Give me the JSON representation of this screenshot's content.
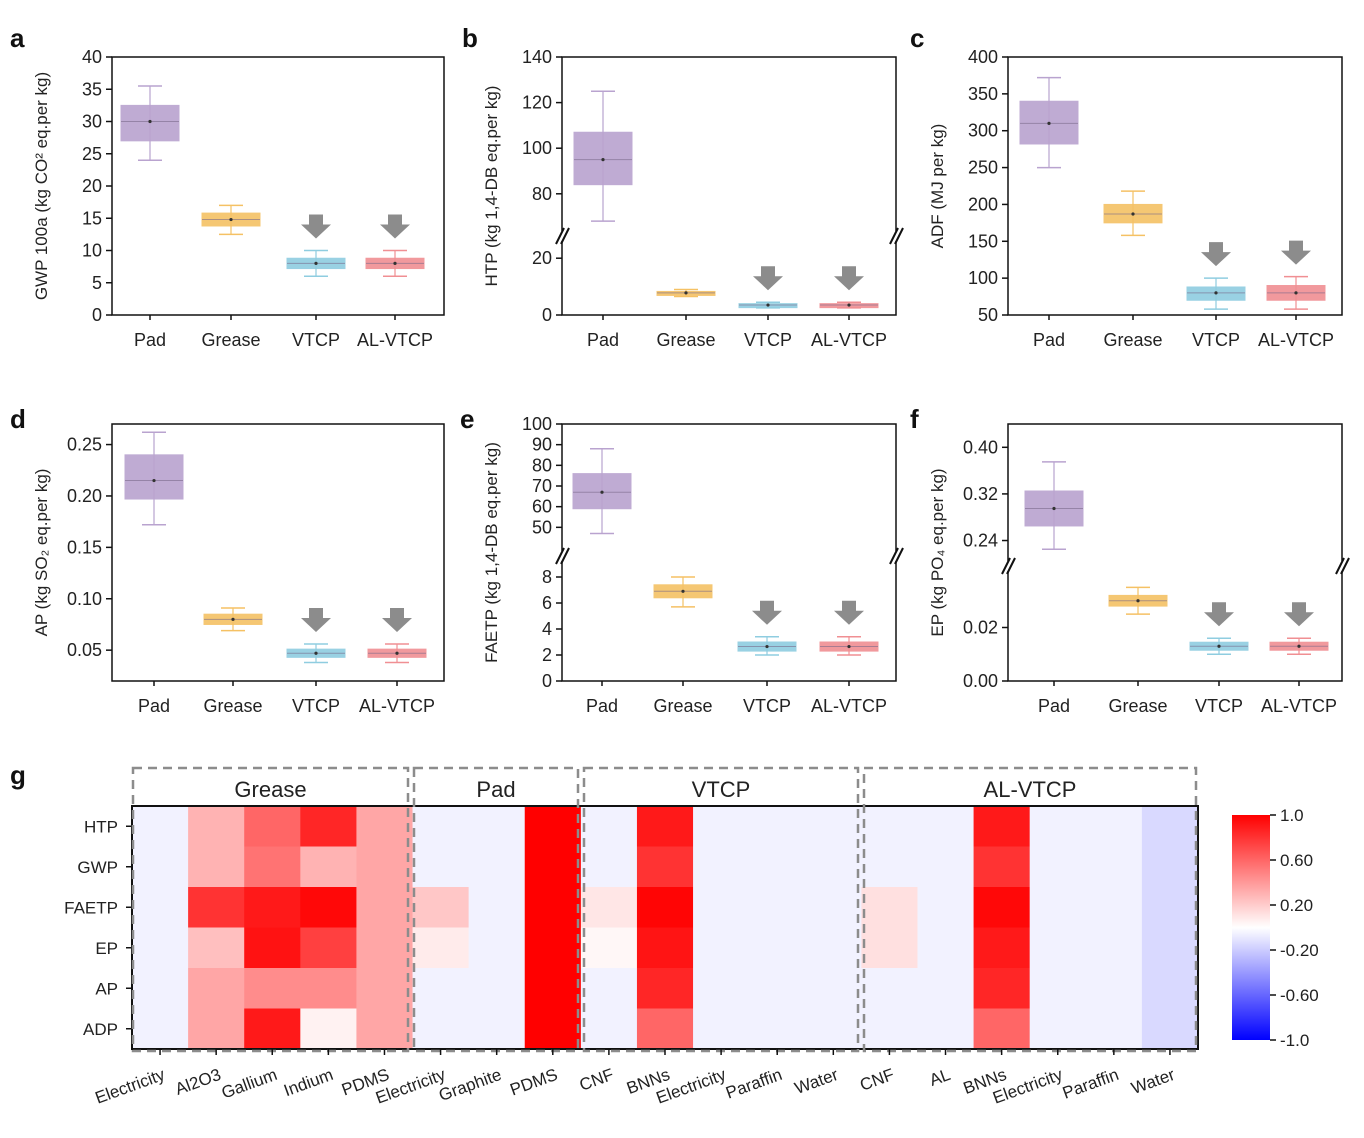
{
  "chart_data": [
    {
      "panel": "a",
      "type": "box",
      "ylabel": "GWP 100a (kg CO² eq.per kg)",
      "ylim": [
        0,
        40
      ],
      "yticks": [
        0,
        5,
        10,
        15,
        20,
        25,
        30,
        35,
        40
      ],
      "categories": [
        "Pad",
        "Grease",
        "VTCP",
        "AL-VTCP"
      ],
      "colors": [
        "#b9a3cf",
        "#f5c164",
        "#8fcde0",
        "#f08f93"
      ],
      "boxes": [
        {
          "min": 24,
          "q1": 27,
          "median": 30,
          "q3": 32.5,
          "max": 35.5
        },
        {
          "min": 12.5,
          "q1": 13.8,
          "median": 14.8,
          "q3": 15.8,
          "max": 17
        },
        {
          "min": 6,
          "q1": 7.2,
          "median": 8,
          "q3": 8.8,
          "max": 10
        },
        {
          "min": 6,
          "q1": 7.2,
          "median": 8,
          "q3": 8.8,
          "max": 10
        }
      ],
      "arrows": [
        "VTCP",
        "AL-VTCP"
      ]
    },
    {
      "panel": "b",
      "type": "box",
      "ylabel": "HTP (kg 1,4-DB eq.per kg)",
      "ylim_low": [
        0,
        25
      ],
      "yticks_low": [
        0,
        20
      ],
      "ylim_high": [
        65,
        140
      ],
      "yticks_high": [
        80,
        100,
        120,
        140
      ],
      "categories": [
        "Pad",
        "Grease",
        "VTCP",
        "AL-VTCP"
      ],
      "colors": [
        "#b9a3cf",
        "#f5c164",
        "#8fcde0",
        "#f08f93"
      ],
      "boxes": [
        {
          "min": 68,
          "q1": 84,
          "median": 95,
          "q3": 107,
          "max": 125
        },
        {
          "min": 6.5,
          "q1": 7.2,
          "median": 7.8,
          "q3": 8.3,
          "max": 9
        },
        {
          "min": 2.5,
          "q1": 3,
          "median": 3.5,
          "q3": 4,
          "max": 4.5
        },
        {
          "min": 2.5,
          "q1": 3,
          "median": 3.5,
          "q3": 4,
          "max": 4.5
        }
      ],
      "arrows": [
        "VTCP",
        "AL-VTCP"
      ]
    },
    {
      "panel": "c",
      "type": "box",
      "ylabel": "ADF (MJ per kg)",
      "ylim": [
        50,
        400
      ],
      "yticks": [
        50,
        100,
        150,
        200,
        250,
        300,
        350,
        400
      ],
      "categories": [
        "Pad",
        "Grease",
        "VTCP",
        "AL-VTCP"
      ],
      "colors": [
        "#b9a3cf",
        "#f5c164",
        "#8fcde0",
        "#f08f93"
      ],
      "boxes": [
        {
          "min": 250,
          "q1": 282,
          "median": 310,
          "q3": 340,
          "max": 372
        },
        {
          "min": 158,
          "q1": 175,
          "median": 187,
          "q3": 200,
          "max": 218
        },
        {
          "min": 58,
          "q1": 70,
          "median": 80,
          "q3": 88,
          "max": 100
        },
        {
          "min": 58,
          "q1": 70,
          "median": 80,
          "q3": 90,
          "max": 102
        }
      ],
      "arrows": [
        "VTCP",
        "AL-VTCP"
      ]
    },
    {
      "panel": "d",
      "type": "box",
      "ylabel": "AP (kg SO₂ eq.per kg)",
      "ylim": [
        0.02,
        0.27
      ],
      "yticks": [
        0.05,
        0.1,
        0.15,
        0.2,
        0.25
      ],
      "ytick_labels": [
        "0.05",
        "0.10",
        "0.15",
        "0.20",
        "0.25"
      ],
      "categories": [
        "Pad",
        "Grease",
        "VTCP",
        "AL-VTCP"
      ],
      "colors": [
        "#b9a3cf",
        "#f5c164",
        "#8fcde0",
        "#f08f93"
      ],
      "boxes": [
        {
          "min": 0.172,
          "q1": 0.197,
          "median": 0.215,
          "q3": 0.24,
          "max": 0.262
        },
        {
          "min": 0.069,
          "q1": 0.075,
          "median": 0.08,
          "q3": 0.085,
          "max": 0.091
        },
        {
          "min": 0.038,
          "q1": 0.043,
          "median": 0.047,
          "q3": 0.051,
          "max": 0.056
        },
        {
          "min": 0.038,
          "q1": 0.043,
          "median": 0.047,
          "q3": 0.051,
          "max": 0.056
        }
      ],
      "arrows": [
        "VTCP",
        "AL-VTCP"
      ]
    },
    {
      "panel": "e",
      "type": "box",
      "ylabel": "FAETP (kg 1,4-DB eq.per kg)",
      "ylim_low": [
        0,
        9
      ],
      "yticks_low": [
        0,
        2,
        4,
        6,
        8
      ],
      "ylim_high": [
        40,
        100
      ],
      "yticks_high": [
        50,
        60,
        70,
        80,
        90,
        100
      ],
      "categories": [
        "Pad",
        "Grease",
        "VTCP",
        "AL-VTCP"
      ],
      "colors": [
        "#b9a3cf",
        "#f5c164",
        "#8fcde0",
        "#f08f93"
      ],
      "boxes": [
        {
          "min": 47,
          "q1": 59,
          "median": 67,
          "q3": 76,
          "max": 88
        },
        {
          "min": 5.7,
          "q1": 6.4,
          "median": 6.9,
          "q3": 7.4,
          "max": 8.0
        },
        {
          "min": 2.0,
          "q1": 2.3,
          "median": 2.65,
          "q3": 3.0,
          "max": 3.4
        },
        {
          "min": 2.0,
          "q1": 2.3,
          "median": 2.65,
          "q3": 3.0,
          "max": 3.4
        }
      ],
      "arrows": [
        "VTCP",
        "AL-VTCP"
      ]
    },
    {
      "panel": "f",
      "type": "box",
      "ylabel": "EP (kg PO₄ eq.per kg)",
      "ylim_low": [
        0,
        0.04
      ],
      "yticks_low": [
        0.0,
        0.02
      ],
      "ytick_labels_low": [
        "0.00",
        "0.02"
      ],
      "ylim_high": [
        0.21,
        0.44
      ],
      "yticks_high": [
        0.24,
        0.32,
        0.4
      ],
      "ytick_labels_high": [
        "0.24",
        "0.32",
        "0.40"
      ],
      "categories": [
        "Pad",
        "Grease",
        "VTCP",
        "AL-VTCP"
      ],
      "colors": [
        "#b9a3cf",
        "#f5c164",
        "#8fcde0",
        "#f08f93"
      ],
      "boxes": [
        {
          "min": 0.225,
          "q1": 0.265,
          "median": 0.295,
          "q3": 0.325,
          "max": 0.375
        },
        {
          "min": 0.025,
          "q1": 0.028,
          "median": 0.03,
          "q3": 0.032,
          "max": 0.035
        },
        {
          "min": 0.01,
          "q1": 0.0115,
          "median": 0.013,
          "q3": 0.0145,
          "max": 0.016
        },
        {
          "min": 0.01,
          "q1": 0.0115,
          "median": 0.013,
          "q3": 0.0145,
          "max": 0.016
        }
      ],
      "arrows": [
        "VTCP",
        "AL-VTCP"
      ]
    },
    {
      "panel": "g",
      "type": "heatmap",
      "rows": [
        "HTP",
        "GWP",
        "FAETP",
        "EP",
        "AP",
        "ADP"
      ],
      "groups": [
        {
          "name": "Grease",
          "columns": [
            "Electricity",
            "Al2O3",
            "Gallium",
            "Indium",
            "PDMS"
          ]
        },
        {
          "name": "Pad",
          "columns": [
            "Electricity",
            "Graphite",
            "PDMS"
          ]
        },
        {
          "name": "VTCP",
          "columns": [
            "CNF",
            "BNNs",
            "Electricity",
            "Paraffin",
            "Water"
          ]
        },
        {
          "name": "AL-VTCP",
          "columns": [
            "CNF",
            "AL",
            "BNNs",
            "Electricity",
            "Paraffin",
            "Water"
          ]
        }
      ],
      "values_by_row": [
        [
          -0.05,
          0.3,
          0.6,
          0.85,
          0.35,
          -0.05,
          -0.05,
          1.0,
          -0.05,
          0.9,
          -0.05,
          -0.05,
          -0.05,
          -0.05,
          -0.05,
          0.9,
          -0.05,
          -0.05,
          -0.15
        ],
        [
          -0.05,
          0.3,
          0.55,
          0.3,
          0.35,
          -0.05,
          -0.05,
          1.0,
          -0.05,
          0.8,
          -0.05,
          -0.05,
          -0.05,
          -0.05,
          -0.05,
          0.8,
          -0.05,
          -0.05,
          -0.15
        ],
        [
          -0.05,
          0.8,
          0.9,
          0.97,
          0.35,
          0.22,
          -0.05,
          1.0,
          0.1,
          0.98,
          -0.05,
          -0.05,
          -0.05,
          0.12,
          -0.05,
          0.97,
          -0.05,
          -0.05,
          -0.15
        ],
        [
          -0.05,
          0.25,
          0.93,
          0.75,
          0.35,
          0.08,
          -0.05,
          1.0,
          0.03,
          0.92,
          -0.05,
          -0.05,
          -0.05,
          0.12,
          -0.05,
          0.9,
          -0.05,
          -0.05,
          -0.15
        ],
        [
          -0.05,
          0.35,
          0.45,
          0.45,
          0.35,
          -0.05,
          -0.05,
          1.0,
          -0.05,
          0.85,
          -0.05,
          -0.05,
          -0.05,
          -0.05,
          -0.05,
          0.85,
          -0.05,
          -0.05,
          -0.15
        ],
        [
          -0.05,
          0.35,
          0.9,
          0.05,
          0.35,
          -0.05,
          -0.05,
          1.0,
          -0.05,
          0.6,
          -0.05,
          -0.05,
          -0.05,
          -0.05,
          -0.05,
          0.6,
          -0.05,
          -0.05,
          -0.15
        ]
      ],
      "colorbar": {
        "range": [
          -1.0,
          1.0
        ],
        "ticks": [
          1.0,
          0.6,
          0.2,
          -0.2,
          -0.6,
          -1.0
        ],
        "labels": [
          "1.0",
          "0.60",
          "0.20",
          "-0.20",
          "-0.60",
          "-1.0"
        ],
        "colors": [
          "#0000ff",
          "#ffffff",
          "#ff0000"
        ]
      }
    }
  ]
}
